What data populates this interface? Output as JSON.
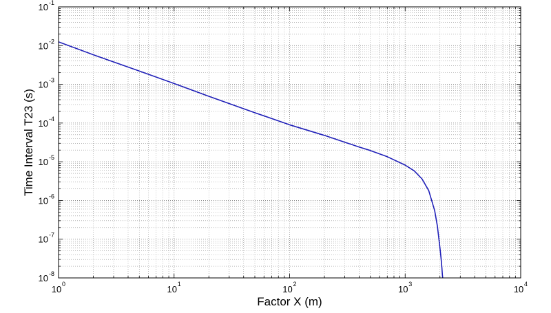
{
  "chart_data": {
    "type": "line",
    "title": "",
    "xlabel": "Factor X (m)",
    "ylabel": "Time Interval T23 (s)",
    "xscale": "log",
    "yscale": "log",
    "xlim": [
      1,
      10000
    ],
    "ylim": [
      1e-08,
      0.1
    ],
    "grid": true,
    "grid_style": "dotted, major and minor",
    "x_ticks": [
      {
        "base": "10",
        "exp": "0",
        "value": 1
      },
      {
        "base": "10",
        "exp": "1",
        "value": 10
      },
      {
        "base": "10",
        "exp": "2",
        "value": 100
      },
      {
        "base": "10",
        "exp": "3",
        "value": 1000
      },
      {
        "base": "10",
        "exp": "4",
        "value": 10000
      }
    ],
    "y_ticks": [
      {
        "base": "10",
        "exp": "-8",
        "value": 1e-08
      },
      {
        "base": "10",
        "exp": "-7",
        "value": 1e-07
      },
      {
        "base": "10",
        "exp": "-6",
        "value": 1e-06
      },
      {
        "base": "10",
        "exp": "-5",
        "value": 1e-05
      },
      {
        "base": "10",
        "exp": "-4",
        "value": 0.0001
      },
      {
        "base": "10",
        "exp": "-3",
        "value": 0.001
      },
      {
        "base": "10",
        "exp": "-2",
        "value": 0.01
      },
      {
        "base": "10",
        "exp": "-1",
        "value": 0.1
      }
    ],
    "series": [
      {
        "color": "#1f1fb8",
        "x": [
          1,
          2,
          5,
          10,
          20,
          50,
          100,
          200,
          300,
          400,
          500,
          700,
          1000,
          1200,
          1400,
          1600,
          1800,
          1900,
          2000,
          2050,
          2080,
          2100,
          2110,
          2115
        ],
        "y": [
          0.0125,
          0.0058,
          0.0022,
          0.00105,
          0.00049,
          0.000185,
          9e-05,
          4.8e-05,
          3.2e-05,
          2.4e-05,
          1.95e-05,
          1.35e-05,
          8.2e-06,
          5.8e-06,
          3.6e-06,
          1.8e-06,
          5.5e-07,
          2.2e-07,
          6e-08,
          3e-08,
          1.8e-08,
          1.2e-08,
          1.05e-08,
          1e-08
        ]
      }
    ]
  }
}
